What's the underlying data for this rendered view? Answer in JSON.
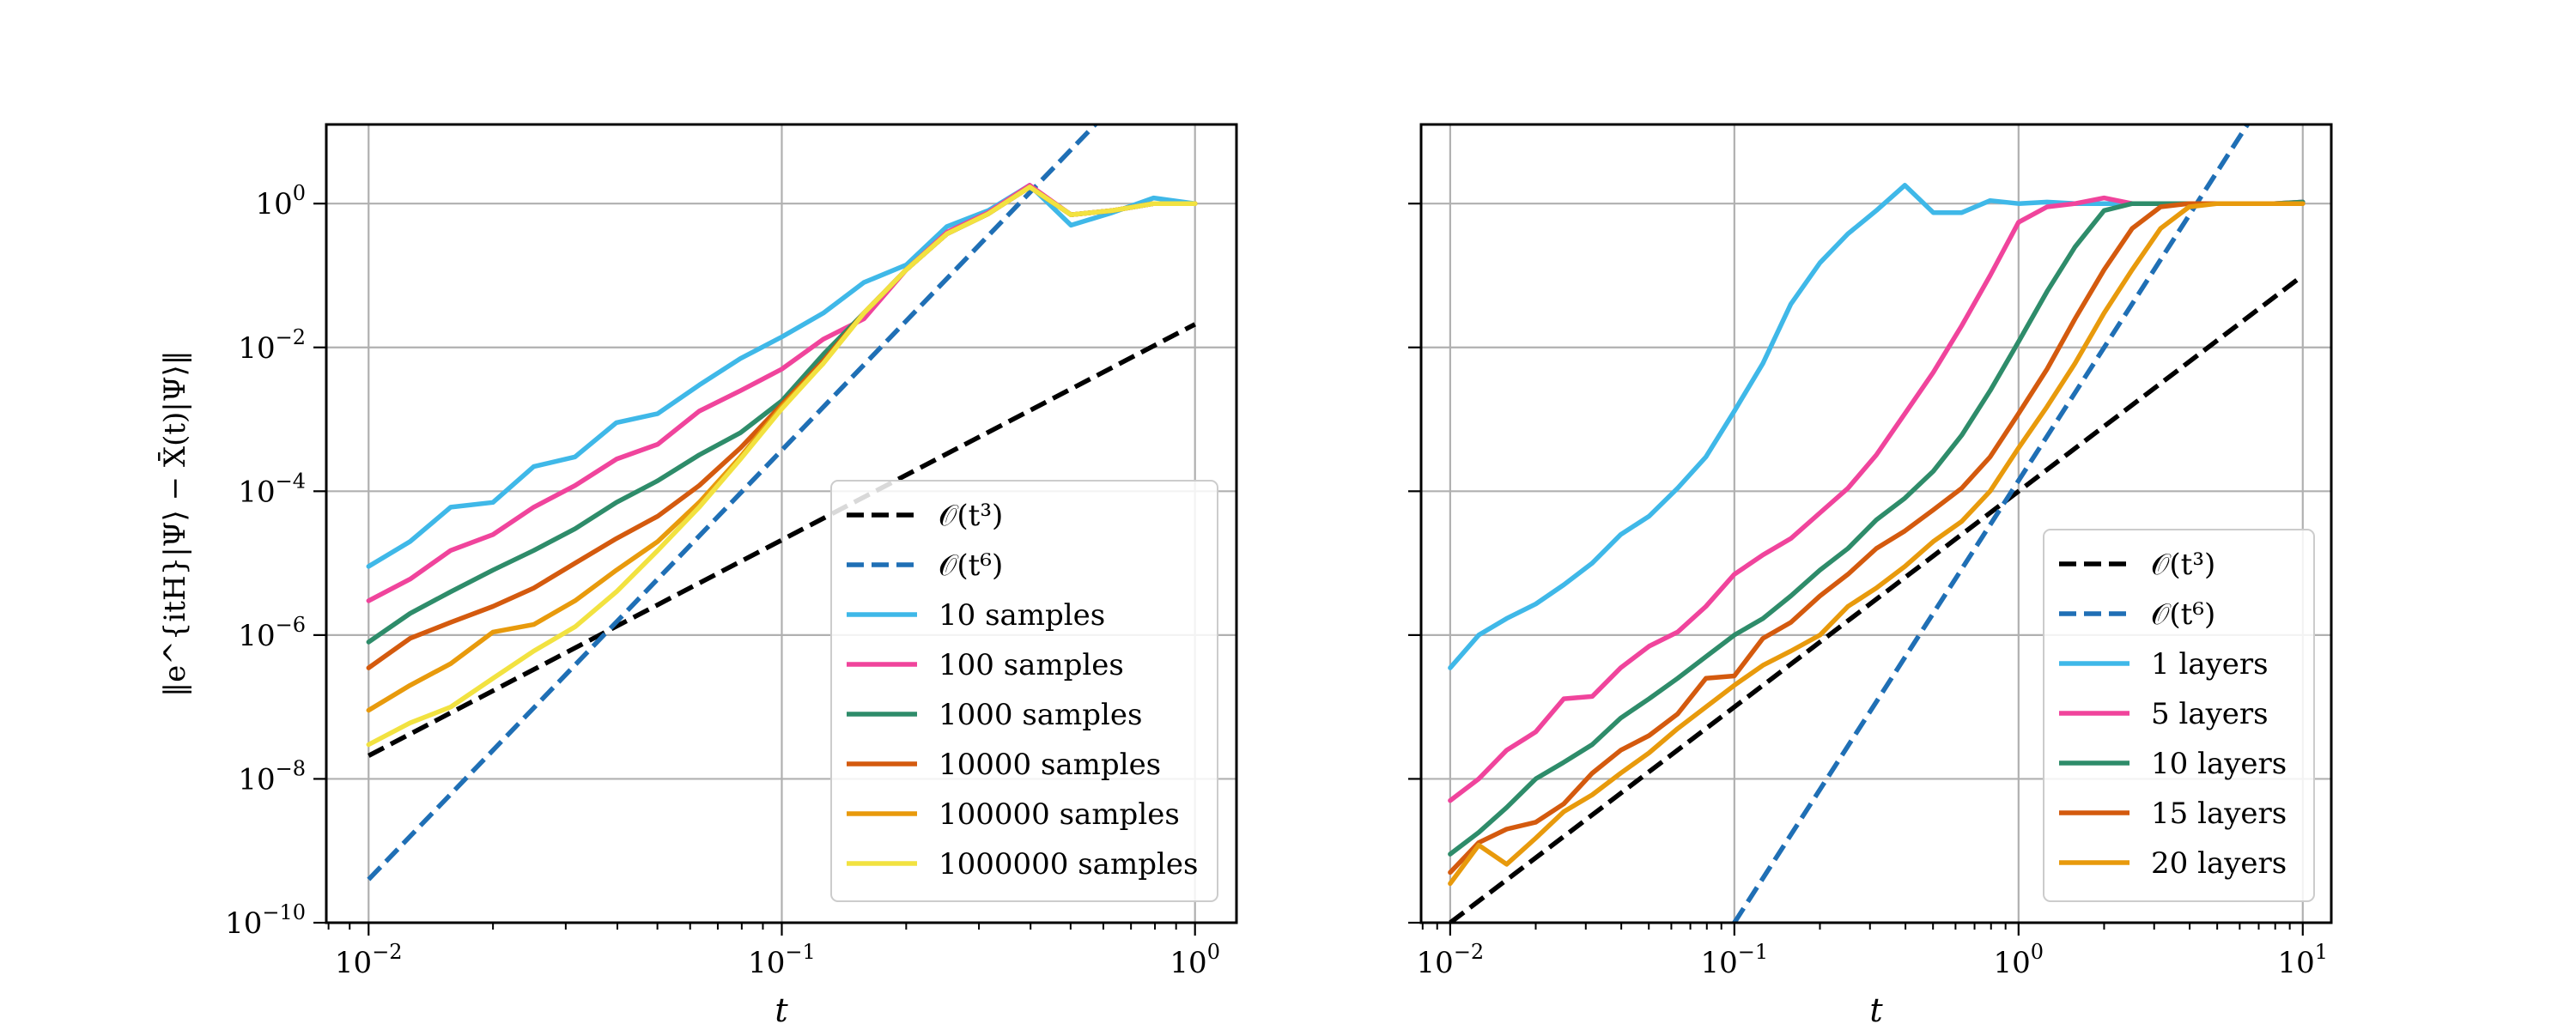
{
  "chart_data": [
    {
      "type": "line",
      "xscale": "log",
      "yscale": "log",
      "xlim": [
        0.0079,
        1.26
      ],
      "ylim": [
        1e-10,
        12.6
      ],
      "grid": true,
      "legend_position": "lower-right",
      "xlabel": "t",
      "ylabel": "‖e^{itH}|Ψ⟩ − X̄(t)|Ψ⟩‖",
      "xticks": [
        {
          "value": 0.01,
          "base": "10",
          "exp": "−2"
        },
        {
          "value": 0.1,
          "base": "10",
          "exp": "−1"
        },
        {
          "value": 1,
          "base": "10",
          "exp": "0"
        }
      ],
      "yticks": [
        {
          "value": 1e-10,
          "base": "10",
          "exp": "−10"
        },
        {
          "value": 1e-08,
          "base": "10",
          "exp": "−8"
        },
        {
          "value": 1e-06,
          "base": "10",
          "exp": "−6"
        },
        {
          "value": 0.0001,
          "base": "10",
          "exp": "−4"
        },
        {
          "value": 0.01,
          "base": "10",
          "exp": "−2"
        },
        {
          "value": 1,
          "base": "10",
          "exp": "0"
        }
      ],
      "x": [
        0.01,
        0.0126,
        0.0158,
        0.02,
        0.0251,
        0.0316,
        0.0398,
        0.0501,
        0.0631,
        0.0794,
        0.1,
        0.126,
        0.158,
        0.2,
        0.251,
        0.316,
        0.398,
        0.501,
        0.631,
        0.794,
        1.0
      ],
      "series": [
        {
          "name": "𝒪(t³)",
          "color": "#000000",
          "dashed": true,
          "x": [
            0.01,
            1.0
          ],
          "values": [
            2.1e-08,
            0.021
          ]
        },
        {
          "name": "𝒪(t⁶)",
          "color": "#1f6fb5",
          "dashed": true,
          "x": [
            0.01,
            0.63
          ],
          "values": [
            4e-10,
            22
          ]
        },
        {
          "name": "10 samples",
          "color": "#3fb8e8",
          "values": [
            9e-06,
            2e-05,
            6e-05,
            7e-05,
            0.00022,
            0.0003,
            0.0009,
            0.0012,
            0.003,
            0.007,
            0.014,
            0.03,
            0.08,
            0.14,
            0.48,
            0.8,
            1.8,
            0.5,
            0.75,
            1.2,
            1.0
          ]
        },
        {
          "name": "100 samples",
          "color": "#f0449c",
          "values": [
            3e-06,
            6e-06,
            1.5e-05,
            2.5e-05,
            6e-05,
            0.00012,
            0.00028,
            0.00045,
            0.0013,
            0.0025,
            0.005,
            0.013,
            0.025,
            0.12,
            0.4,
            0.75,
            1.8,
            0.7,
            0.8,
            1.0,
            1.0
          ]
        },
        {
          "name": "1000 samples",
          "color": "#2e8c6a",
          "values": [
            8e-07,
            2e-06,
            4e-06,
            8e-06,
            1.5e-05,
            3e-05,
            7e-05,
            0.00014,
            0.00032,
            0.00065,
            0.0018,
            0.008,
            0.03,
            0.12,
            0.38,
            0.72,
            1.7,
            0.7,
            0.8,
            1.0,
            1.0
          ]
        },
        {
          "name": "10000 samples",
          "color": "#d45a0e",
          "values": [
            3.5e-07,
            9e-07,
            1.5e-06,
            2.5e-06,
            4.5e-06,
            1e-05,
            2.2e-05,
            4.5e-05,
            0.00012,
            0.0004,
            0.0016,
            0.0065,
            0.03,
            0.12,
            0.38,
            0.72,
            1.7,
            0.7,
            0.8,
            1.0,
            1.0
          ]
        },
        {
          "name": "100000 samples",
          "color": "#e89a0c",
          "values": [
            9e-08,
            2e-07,
            4e-07,
            1.1e-06,
            1.4e-06,
            3e-06,
            8e-06,
            2e-05,
            7e-05,
            0.0003,
            0.0015,
            0.006,
            0.03,
            0.12,
            0.38,
            0.72,
            1.7,
            0.7,
            0.8,
            1.0,
            1.0
          ]
        },
        {
          "name": "1000000 samples",
          "color": "#f2e240",
          "values": [
            3e-08,
            6e-08,
            1e-07,
            2.5e-07,
            6e-07,
            1.3e-06,
            4e-06,
            1.5e-05,
            6e-05,
            0.00028,
            0.0014,
            0.006,
            0.03,
            0.12,
            0.38,
            0.72,
            1.7,
            0.7,
            0.8,
            1.0,
            1.0
          ]
        }
      ]
    },
    {
      "type": "line",
      "xscale": "log",
      "yscale": "log",
      "xlim": [
        0.0079,
        12.6
      ],
      "ylim": [
        1e-10,
        12.6
      ],
      "grid": true,
      "legend_position": "lower-right",
      "xlabel": "t",
      "ylabel": "",
      "xticks": [
        {
          "value": 0.01,
          "base": "10",
          "exp": "−2"
        },
        {
          "value": 0.1,
          "base": "10",
          "exp": "−1"
        },
        {
          "value": 1,
          "base": "10",
          "exp": "0"
        },
        {
          "value": 10,
          "base": "10",
          "exp": "1"
        }
      ],
      "yticks": [
        {
          "value": 1e-10,
          "base": "",
          "exp": ""
        },
        {
          "value": 1e-08,
          "base": "",
          "exp": ""
        },
        {
          "value": 1e-06,
          "base": "",
          "exp": ""
        },
        {
          "value": 0.0001,
          "base": "",
          "exp": ""
        },
        {
          "value": 0.01,
          "base": "",
          "exp": ""
        },
        {
          "value": 1,
          "base": "",
          "exp": ""
        }
      ],
      "x": [
        0.01,
        0.0126,
        0.0158,
        0.02,
        0.0251,
        0.0316,
        0.0398,
        0.0501,
        0.0631,
        0.0794,
        0.1,
        0.126,
        0.158,
        0.2,
        0.251,
        0.316,
        0.398,
        0.501,
        0.631,
        0.794,
        1.0,
        1.26,
        1.58,
        2.0,
        2.51,
        3.16,
        3.98,
        5.01,
        6.31,
        7.94,
        10.0
      ],
      "series": [
        {
          "name": "𝒪(t³)",
          "color": "#000000",
          "dashed": true,
          "x": [
            0.01,
            10.0
          ],
          "values": [
            1e-10,
            0.1
          ]
        },
        {
          "name": "𝒪(t⁶)",
          "color": "#1f6fb5",
          "dashed": true,
          "x": [
            0.1,
            6.5
          ],
          "values": [
            1e-10,
            14
          ]
        },
        {
          "name": "1 layers",
          "color": "#3fb8e8",
          "values": [
            3.5e-07,
            1e-06,
            1.7e-06,
            2.7e-06,
            5e-06,
            1e-05,
            2.5e-05,
            4.5e-05,
            0.00011,
            0.0003,
            0.0013,
            0.006,
            0.04,
            0.15,
            0.38,
            0.8,
            1.8,
            0.75,
            0.75,
            1.1,
            1.0,
            1.05,
            1.0,
            1.0,
            1.0,
            1.0,
            1.0,
            1.0,
            1.0,
            1.0,
            1.05
          ]
        },
        {
          "name": "5 layers",
          "color": "#f0449c",
          "values": [
            5e-09,
            1e-08,
            2.5e-08,
            4.5e-08,
            1.3e-07,
            1.4e-07,
            3.5e-07,
            7e-07,
            1.1e-06,
            2.5e-06,
            7e-06,
            1.3e-05,
            2.2e-05,
            5e-05,
            0.00011,
            0.00032,
            0.0012,
            0.0045,
            0.02,
            0.1,
            0.55,
            0.9,
            1.0,
            1.2,
            1.0,
            1.0,
            1.0,
            1.0,
            1.0,
            1.0,
            1.05
          ]
        },
        {
          "name": "10 layers",
          "color": "#2e8c6a",
          "values": [
            9e-10,
            1.8e-09,
            4e-09,
            1e-08,
            1.7e-08,
            3e-08,
            7e-08,
            1.3e-07,
            2.5e-07,
            5e-07,
            1e-06,
            1.7e-06,
            3.5e-06,
            8e-06,
            1.6e-05,
            4e-05,
            8e-05,
            0.00019,
            0.0006,
            0.0025,
            0.012,
            0.06,
            0.25,
            0.8,
            1.0,
            1.0,
            1.0,
            1.0,
            1.0,
            1.0,
            1.05
          ]
        },
        {
          "name": "15 layers",
          "color": "#d45a0e",
          "values": [
            5e-10,
            1.3e-09,
            2e-09,
            2.5e-09,
            4.5e-09,
            1.2e-08,
            2.5e-08,
            4e-08,
            8e-08,
            2.5e-07,
            2.7e-07,
            9e-07,
            1.5e-06,
            3.5e-06,
            7e-06,
            1.6e-05,
            2.8e-05,
            5.5e-05,
            0.00011,
            0.0003,
            0.0012,
            0.005,
            0.025,
            0.12,
            0.45,
            0.9,
            1.0,
            1.0,
            1.0,
            1.0,
            1.0
          ]
        },
        {
          "name": "20 layers",
          "color": "#e89a0c",
          "values": [
            3.5e-10,
            1.2e-09,
            6.5e-10,
            1.5e-09,
            3.5e-09,
            6e-09,
            1.2e-08,
            2.3e-08,
            5e-08,
            1e-07,
            2e-07,
            3.8e-07,
            6e-07,
            1e-06,
            2.5e-06,
            4.5e-06,
            9e-06,
            2e-05,
            3.8e-05,
            0.0001,
            0.0004,
            0.0015,
            0.006,
            0.03,
            0.12,
            0.45,
            0.9,
            1.0,
            1.0,
            1.0,
            1.0
          ]
        }
      ]
    }
  ]
}
